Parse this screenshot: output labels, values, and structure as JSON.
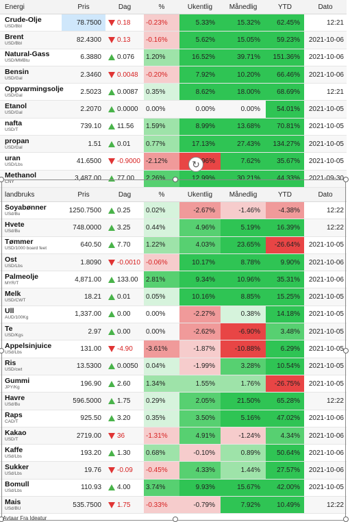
{
  "energi": {
    "headers": {
      "name": "Energi",
      "pris": "Pris",
      "dag": "Dag",
      "pct": "%",
      "uke": "Ukentlig",
      "mnd": "Månedlig",
      "ytd": "YTD",
      "dato": "Dato"
    },
    "rows": [
      {
        "name": "Crude-Olje",
        "unit": "USD/Bbl",
        "pris": "78.7500",
        "dag": "0.18",
        "dir": "dn",
        "pct": "-0.23%",
        "uke": "5.33%",
        "mnd": "15.32%",
        "ytd": "62.45%",
        "dato": "12:21"
      },
      {
        "name": "Brent",
        "unit": "USD/Bbl",
        "pris": "82.4300",
        "dag": "0.13",
        "dir": "dn",
        "pct": "-0.16%",
        "uke": "5.62%",
        "mnd": "15.05%",
        "ytd": "59.23%",
        "dato": "2021-10-06"
      },
      {
        "name": "Natural-Gass",
        "unit": "USD/MMBtu",
        "pris": "6.3880",
        "dag": "0.076",
        "dir": "up",
        "pct": "1.20%",
        "uke": "16.52%",
        "mnd": "39.71%",
        "ytd": "151.36%",
        "dato": "2021-10-06"
      },
      {
        "name": "Bensin",
        "unit": "USD/Gal",
        "pris": "2.3460",
        "dag": "0.0048",
        "dir": "dn",
        "pct": "-0.20%",
        "uke": "7.92%",
        "mnd": "10.20%",
        "ytd": "66.46%",
        "dato": "2021-10-06"
      },
      {
        "name": "Oppvarmingsolje",
        "unit": "USD/Gal",
        "pris": "2.5023",
        "dag": "0.0087",
        "dir": "up",
        "pct": "0.35%",
        "uke": "8.62%",
        "mnd": "18.00%",
        "ytd": "68.69%",
        "dato": "12:21"
      },
      {
        "name": "Etanol",
        "unit": "USD/Gal",
        "pris": "2.2070",
        "dag": "0.0000",
        "dir": "up",
        "pct": "0.00%",
        "uke": "0.00%",
        "mnd": "0.00%",
        "ytd": "54.01%",
        "dato": "2021-10-05"
      },
      {
        "name": "nafta",
        "unit": "USD/T",
        "pris": "739.10",
        "dag": "11.56",
        "dir": "up",
        "pct": "1.59%",
        "uke": "8.99%",
        "mnd": "13.68%",
        "ytd": "70.81%",
        "dato": "2021-10-05"
      },
      {
        "name": "propan",
        "unit": "USD/Gal",
        "pris": "1.51",
        "dag": "0.01",
        "dir": "up",
        "pct": "0.77%",
        "uke": "17.13%",
        "mnd": "27.43%",
        "ytd": "134.27%",
        "dato": "2021-10-05"
      },
      {
        "name": "uran",
        "unit": "USD/Lbs",
        "pris": "41.6500",
        "dag": "-0.9000",
        "dir": "dn",
        "pct": "-2.12%",
        "uke": "-7.96%",
        "mnd": "7.62%",
        "ytd": "35.67%",
        "dato": "2021-10-05"
      },
      {
        "name": "Methanol",
        "unit": "CNY",
        "pris": "3,487.00",
        "dag": "77.00",
        "dir": "up",
        "pct": "2.26%",
        "uke": "12.99%",
        "mnd": "30.21%",
        "ytd": "44.33%",
        "dato": "2021-09-30"
      }
    ]
  },
  "landbruk": {
    "headers": {
      "name": "landbruks",
      "pris": "Pris",
      "dag": "Dag",
      "pct": "%",
      "uke": "Ukentlig",
      "mnd": "Månedlig",
      "ytd": "YTD",
      "dato": "Dato"
    },
    "rows": [
      {
        "name": "Soyabønner",
        "unit": "USd/Bu",
        "pris": "1250.7500",
        "dag": "0.25",
        "dir": "up",
        "pct": "0.02%",
        "uke": "-2.67%",
        "mnd": "-1.46%",
        "ytd": "-4.38%",
        "dato": "12:22"
      },
      {
        "name": "Hvete",
        "unit": "USd/Bu",
        "pris": "748.0000",
        "dag": "3.25",
        "dir": "up",
        "pct": "0.44%",
        "uke": "4.96%",
        "mnd": "5.19%",
        "ytd": "16.39%",
        "dato": "12:22"
      },
      {
        "name": "Tømmer",
        "unit": "USD/1000 board feet",
        "pris": "640.50",
        "dag": "7.70",
        "dir": "up",
        "pct": "1.22%",
        "uke": "4.03%",
        "mnd": "23.65%",
        "ytd": "-26.64%",
        "dato": "2021-10-05"
      },
      {
        "name": "Ost",
        "unit": "USD/Lbs",
        "pris": "1.8090",
        "dag": "-0.0010",
        "dir": "dn",
        "pct": "-0.06%",
        "uke": "10.17%",
        "mnd": "8.78%",
        "ytd": "9.90%",
        "dato": "2021-10-06"
      },
      {
        "name": "Palmeolje",
        "unit": "MYR/T",
        "pris": "4,871.00",
        "dag": "133.00",
        "dir": "up",
        "pct": "2.81%",
        "uke": "9.34%",
        "mnd": "10.96%",
        "ytd": "35.31%",
        "dato": "2021-10-06"
      },
      {
        "name": "Melk",
        "unit": "USD/CWT",
        "pris": "18.21",
        "dag": "0.01",
        "dir": "up",
        "pct": "0.05%",
        "uke": "10.16%",
        "mnd": "8.85%",
        "ytd": "15.25%",
        "dato": "2021-10-05"
      },
      {
        "name": "Ull",
        "unit": "AUD/100Kg",
        "pris": "1,337.00",
        "dag": "0.00",
        "dir": "up",
        "pct": "0.00%",
        "uke": "-2.27%",
        "mnd": "0.38%",
        "ytd": "14.18%",
        "dato": "2021-10-05"
      },
      {
        "name": "Te",
        "unit": "USD/Kgs",
        "pris": "2.97",
        "dag": "0.00",
        "dir": "up",
        "pct": "0.00%",
        "uke": "-2.62%",
        "mnd": "-6.90%",
        "ytd": "3.48%",
        "dato": "2021-10-05"
      },
      {
        "name": "Appelsinjuice",
        "unit": "USd/Lbs",
        "pris": "131.00",
        "dag": "-4.90",
        "dir": "dn",
        "pct": "-3.61%",
        "uke": "-1.87%",
        "mnd": "-10.88%",
        "ytd": "6.29%",
        "dato": "2021-10-05"
      },
      {
        "name": "Ris",
        "unit": "USD/cwt",
        "pris": "13.5300",
        "dag": "0.0050",
        "dir": "up",
        "pct": "0.04%",
        "uke": "-1.99%",
        "mnd": "3.28%",
        "ytd": "10.54%",
        "dato": "2021-10-05"
      },
      {
        "name": "Gummi",
        "unit": "JPY/Kg",
        "pris": "196.90",
        "dag": "2.60",
        "dir": "up",
        "pct": "1.34%",
        "uke": "1.55%",
        "mnd": "1.76%",
        "ytd": "-26.75%",
        "dato": "2021-10-05"
      },
      {
        "name": "Havre",
        "unit": "USd/Bu",
        "pris": "596.5000",
        "dag": "1.75",
        "dir": "up",
        "pct": "0.29%",
        "uke": "2.05%",
        "mnd": "21.50%",
        "ytd": "65.28%",
        "dato": "12:22"
      },
      {
        "name": "Raps",
        "unit": "CAD/T",
        "pris": "925.50",
        "dag": "3.20",
        "dir": "up",
        "pct": "0.35%",
        "uke": "3.50%",
        "mnd": "5.16%",
        "ytd": "47.02%",
        "dato": "2021-10-06"
      },
      {
        "name": "Kakao",
        "unit": "USD/T",
        "pris": "2719.00",
        "dag": "36",
        "dir": "dn",
        "pct": "-1.31%",
        "uke": "4.91%",
        "mnd": "-1.24%",
        "ytd": "4.34%",
        "dato": "2021-10-06"
      },
      {
        "name": "Kaffe",
        "unit": "USd/Lbs",
        "pris": "193.20",
        "dag": "1.30",
        "dir": "up",
        "pct": "0.68%",
        "uke": "-0.10%",
        "mnd": "0.89%",
        "ytd": "50.64%",
        "dato": "2021-10-06"
      },
      {
        "name": "Sukker",
        "unit": "USd/Lbs",
        "pris": "19.76",
        "dag": "-0.09",
        "dir": "dn",
        "pct": "-0.45%",
        "uke": "4.33%",
        "mnd": "1.44%",
        "ytd": "27.57%",
        "dato": "2021-10-06"
      },
      {
        "name": "Bomull",
        "unit": "USd/Lbs",
        "pris": "110.93",
        "dag": "4.00",
        "dir": "up",
        "pct": "3.74%",
        "uke": "9.93%",
        "mnd": "15.67%",
        "ytd": "42.00%",
        "dato": "2021-10-05"
      },
      {
        "name": "Mais",
        "unit": "USd/BU",
        "pris": "535.7500",
        "dag": "1.75",
        "dir": "dn",
        "pct": "-0.33%",
        "uke": "-0.79%",
        "mnd": "7.92%",
        "ytd": "10.49%",
        "dato": "12:22"
      }
    ]
  },
  "footer_text": "Avtaar Fra Ideatur",
  "colors": {
    "up": "#49b34a",
    "down": "#e03434",
    "strong_green": "#2fc454",
    "strong_red": "#e84545",
    "highlight_blue": "#cfe7fb"
  }
}
